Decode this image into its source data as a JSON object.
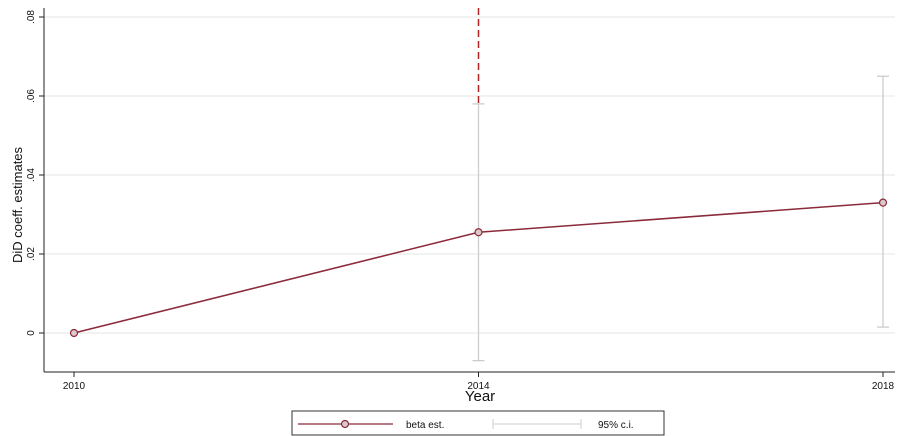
{
  "chart_data": {
    "type": "line",
    "title": "",
    "xlabel": "Year",
    "ylabel": "DiD coeff. estimates",
    "x_ticks": [
      2010,
      2014,
      2018
    ],
    "y_ticks": [
      0,
      0.02,
      0.04,
      0.06,
      0.08
    ],
    "y_tick_labels": [
      "0",
      ".02",
      ".04",
      ".06",
      ".08"
    ],
    "xlim": [
      2010,
      2018
    ],
    "ylim": [
      -0.009,
      0.082
    ],
    "grid": true,
    "series": [
      {
        "name": "beta est.",
        "color": "#8b2a3a",
        "x": [
          2010,
          2014,
          2018
        ],
        "y": [
          0,
          0.0255,
          0.033
        ]
      }
    ],
    "confidence_intervals": {
      "name": "95% c.i.",
      "color": "#cccccc",
      "x": [
        2014,
        2018
      ],
      "lower": [
        -0.007,
        0.0015
      ],
      "upper": [
        0.058,
        0.065
      ]
    },
    "reference_line": {
      "x": 2014,
      "color": "#b22222",
      "style": "dashed"
    },
    "legend": {
      "position": "bottom-center",
      "entries": [
        "beta est.",
        "95% c.i."
      ]
    }
  }
}
